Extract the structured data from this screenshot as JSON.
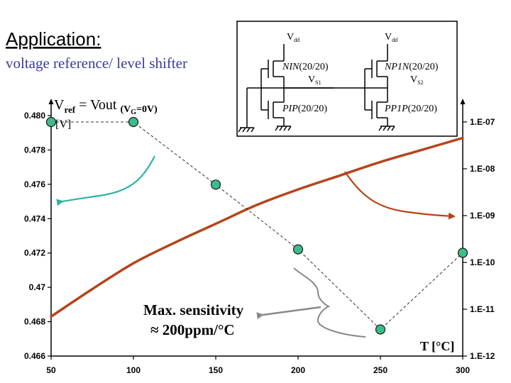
{
  "slide": {
    "heading": "Application:",
    "subheading": "voltage reference/ level shifter",
    "vref_label": {
      "main": "V",
      "sub": "ref",
      "eq": " = Vout ",
      "cond_open": "(V",
      "cond_sub": "G",
      "cond_close": "=0V)"
    },
    "y_unit": "[V]",
    "x_label": "T [°C]",
    "annotation": {
      "line1": "Max. sensitivity",
      "line2": "≈ 200ppm/°C"
    }
  },
  "circuit": {
    "vdd_left": {
      "main": "V",
      "sub": "dd"
    },
    "vdd_right": {
      "main": "V",
      "sub": "dd"
    },
    "top_left": {
      "name": "NIN",
      "size": "(20/20)"
    },
    "top_right": {
      "name": "NP1N",
      "size": "(20/20)"
    },
    "bottom_left": {
      "name": "PIP",
      "size": "(20/20)"
    },
    "bottom_right": {
      "name": "PP1P",
      "size": "(20/20)"
    },
    "vs1": {
      "main": "V",
      "sub": "S1"
    },
    "vs2": {
      "main": "V",
      "sub": "S2"
    }
  },
  "colors": {
    "vref_curve": "#b5451b",
    "sensitivity_marker_fill": "#3dbb8a",
    "sensitivity_line": "#333333",
    "left_arrow": "#2bb3a1",
    "right_arrow": "#b5451b",
    "title_blue": "#3b3b9e"
  },
  "chart_data": {
    "type": "line",
    "x_axis": {
      "ticks": [
        "50",
        "100",
        "150",
        "200",
        "250",
        "300"
      ],
      "xlim": [
        50,
        300
      ]
    },
    "left_axis": {
      "ticks": [
        "0.480",
        "0.478",
        "0.476",
        "0.474",
        "0.472",
        "0.47",
        "0.468",
        "0.466"
      ],
      "ylim": [
        0.466,
        0.48
      ]
    },
    "right_axis": {
      "ticks": [
        "1.E-07",
        "1.E-08",
        "1.E-09",
        "1.E-10",
        "1.E-11",
        "1.E-12"
      ],
      "log_range": [
        -12,
        -7
      ]
    },
    "series": [
      {
        "name": "Vref",
        "axis": "left",
        "x": [
          50,
          75,
          100,
          125,
          150,
          175,
          200,
          225,
          250,
          275,
          300
        ],
        "values": [
          0.4683,
          0.4699,
          0.4714,
          0.4726,
          0.4737,
          0.4748,
          0.4757,
          0.4765,
          0.4773,
          0.478,
          0.4787
        ]
      },
      {
        "name": "Sensitivity",
        "axis": "right",
        "x": [
          50,
          100,
          150,
          200,
          250,
          300
        ],
        "values": [
          1e-07,
          1e-07,
          4.6e-09,
          1.9e-10,
          3.7e-12,
          1.6e-10
        ]
      }
    ]
  }
}
